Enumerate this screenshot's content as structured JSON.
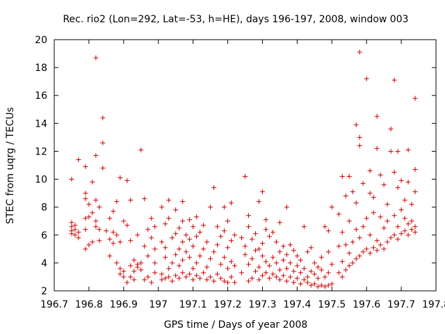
{
  "chart_data": {
    "type": "scatter",
    "title": "Rec. rio2 (Lon=292, Lat=-53, h=HE), days 196-197, 2008, window 003",
    "xlabel": "GPS time / Days of year 2008",
    "ylabel": "STEC from uqrg / TECUs",
    "xlim": [
      196.7,
      197.8
    ],
    "ylim": [
      2,
      20
    ],
    "xticks": [
      "196.7",
      "196.8",
      "196.9",
      "197",
      "197.1",
      "197.2",
      "197.3",
      "197.4",
      "197.5",
      "197.6",
      "197.7",
      "197.8"
    ],
    "yticks": [
      "2",
      "4",
      "6",
      "8",
      "10",
      "12",
      "14",
      "16",
      "18",
      "20"
    ],
    "grid": false,
    "legend": "none",
    "marker": "plus",
    "color": "#cc0000",
    "points": [
      [
        196.75,
        6.3
      ],
      [
        196.75,
        6.1
      ],
      [
        196.75,
        6.6
      ],
      [
        196.75,
        6.9
      ],
      [
        196.75,
        10.0
      ],
      [
        196.76,
        6.0
      ],
      [
        196.76,
        6.4
      ],
      [
        196.76,
        6.7
      ],
      [
        196.77,
        5.8
      ],
      [
        196.77,
        6.2
      ],
      [
        196.77,
        11.4
      ],
      [
        196.79,
        6.4
      ],
      [
        196.79,
        7.2
      ],
      [
        196.79,
        8.6
      ],
      [
        196.79,
        9.0
      ],
      [
        196.79,
        5.0
      ],
      [
        196.79,
        10.9
      ],
      [
        196.8,
        5.3
      ],
      [
        196.8,
        7.3
      ],
      [
        196.8,
        8.2
      ],
      [
        196.81,
        7.6
      ],
      [
        196.81,
        9.8
      ],
      [
        196.81,
        5.5
      ],
      [
        196.82,
        8.5
      ],
      [
        196.82,
        7.0
      ],
      [
        196.82,
        6.6
      ],
      [
        196.82,
        11.7
      ],
      [
        196.82,
        18.7
      ],
      [
        196.83,
        8.0
      ],
      [
        196.83,
        6.4
      ],
      [
        196.83,
        5.6
      ],
      [
        196.84,
        12.6
      ],
      [
        196.84,
        14.4
      ],
      [
        196.84,
        10.8
      ],
      [
        196.85,
        6.3
      ],
      [
        196.86,
        7.2
      ],
      [
        196.86,
        5.7
      ],
      [
        196.86,
        4.5
      ],
      [
        196.87,
        7.7
      ],
      [
        196.87,
        5.4
      ],
      [
        196.87,
        6.2
      ],
      [
        196.88,
        4.0
      ],
      [
        196.88,
        8.4
      ],
      [
        196.88,
        6.0
      ],
      [
        196.89,
        3.6
      ],
      [
        196.89,
        3.2
      ],
      [
        196.89,
        5.5
      ],
      [
        196.89,
        10.1
      ],
      [
        196.9,
        3.0
      ],
      [
        196.9,
        3.4
      ],
      [
        196.9,
        7.0
      ],
      [
        196.91,
        2.6
      ],
      [
        196.91,
        6.7
      ],
      [
        196.91,
        9.9
      ],
      [
        196.92,
        3.8
      ],
      [
        196.92,
        3.0
      ],
      [
        196.92,
        5.6
      ],
      [
        196.92,
        8.5
      ],
      [
        196.93,
        3.4
      ],
      [
        196.93,
        2.8
      ],
      [
        196.93,
        4.2
      ],
      [
        196.94,
        3.7
      ],
      [
        196.94,
        3.9
      ],
      [
        196.94,
        6.0
      ],
      [
        196.95,
        12.1
      ],
      [
        196.95,
        4.0
      ],
      [
        196.95,
        3.5
      ],
      [
        196.96,
        2.8
      ],
      [
        196.96,
        5.2
      ],
      [
        196.96,
        8.6
      ],
      [
        196.97,
        3.0
      ],
      [
        196.97,
        4.5
      ],
      [
        196.97,
        6.4
      ],
      [
        196.98,
        2.6
      ],
      [
        196.98,
        5.8
      ],
      [
        196.98,
        7.2
      ],
      [
        196.99,
        3.3
      ],
      [
        196.99,
        4.0
      ],
      [
        196.99,
        5.0
      ],
      [
        196.99,
        6.6
      ],
      [
        197.01,
        2.8
      ],
      [
        197.01,
        3.2
      ],
      [
        197.01,
        5.5
      ],
      [
        197.01,
        8.0
      ],
      [
        197.02,
        2.9
      ],
      [
        197.02,
        4.4
      ],
      [
        197.02,
        5.1
      ],
      [
        197.02,
        6.8
      ],
      [
        197.03,
        3.0
      ],
      [
        197.03,
        3.6
      ],
      [
        197.03,
        7.2
      ],
      [
        197.03,
        8.5
      ],
      [
        197.04,
        2.7
      ],
      [
        197.04,
        4.0
      ],
      [
        197.04,
        5.8
      ],
      [
        197.05,
        3.1
      ],
      [
        197.05,
        4.6
      ],
      [
        197.05,
        6.1
      ],
      [
        197.05,
        7.8
      ],
      [
        197.06,
        2.9
      ],
      [
        197.06,
        3.8
      ],
      [
        197.06,
        5.0
      ],
      [
        197.06,
        6.5
      ],
      [
        197.07,
        3.3
      ],
      [
        197.07,
        4.2
      ],
      [
        197.07,
        5.5
      ],
      [
        197.07,
        7.0
      ],
      [
        197.07,
        8.4
      ],
      [
        197.08,
        3.0
      ],
      [
        197.08,
        4.8
      ],
      [
        197.08,
        6.0
      ],
      [
        197.09,
        3.2
      ],
      [
        197.09,
        4.4
      ],
      [
        197.09,
        5.7
      ],
      [
        197.09,
        7.1
      ],
      [
        197.1,
        2.8
      ],
      [
        197.1,
        3.6
      ],
      [
        197.1,
        5.2
      ],
      [
        197.1,
        6.6
      ],
      [
        197.11,
        3.1
      ],
      [
        197.11,
        4.0
      ],
      [
        197.11,
        5.9
      ],
      [
        197.11,
        7.3
      ],
      [
        197.12,
        2.9
      ],
      [
        197.12,
        4.5
      ],
      [
        197.12,
        6.2
      ],
      [
        197.13,
        3.3
      ],
      [
        197.13,
        5.0
      ],
      [
        197.13,
        6.7
      ],
      [
        197.14,
        2.8
      ],
      [
        197.14,
        3.7
      ],
      [
        197.14,
        5.5
      ],
      [
        197.15,
        3.0
      ],
      [
        197.15,
        4.3
      ],
      [
        197.15,
        8.0
      ],
      [
        197.16,
        2.7
      ],
      [
        197.16,
        4.8
      ],
      [
        197.16,
        9.4
      ],
      [
        197.17,
        3.2
      ],
      [
        197.17,
        5.3
      ],
      [
        197.17,
        6.6
      ],
      [
        197.18,
        2.9
      ],
      [
        197.18,
        3.9
      ],
      [
        197.18,
        5.9
      ],
      [
        197.19,
        2.7
      ],
      [
        197.19,
        4.4
      ],
      [
        197.19,
        6.3
      ],
      [
        197.19,
        8.0
      ],
      [
        197.2,
        2.6
      ],
      [
        197.2,
        3.6
      ],
      [
        197.2,
        5.1
      ],
      [
        197.2,
        7.0
      ],
      [
        197.21,
        3.0
      ],
      [
        197.21,
        4.1
      ],
      [
        197.21,
        5.6
      ],
      [
        197.21,
        8.3
      ],
      [
        197.22,
        2.6
      ],
      [
        197.22,
        3.8
      ],
      [
        197.22,
        6.0
      ],
      [
        197.24,
        5.8
      ],
      [
        197.24,
        3.3
      ],
      [
        197.25,
        4.6
      ],
      [
        197.25,
        5.2
      ],
      [
        197.25,
        10.2
      ],
      [
        197.26,
        2.7
      ],
      [
        197.26,
        3.9
      ],
      [
        197.26,
        6.6
      ],
      [
        197.26,
        7.4
      ],
      [
        197.27,
        2.9
      ],
      [
        197.27,
        4.3
      ],
      [
        197.27,
        5.7
      ],
      [
        197.28,
        3.4
      ],
      [
        197.28,
        4.9
      ],
      [
        197.28,
        6.1
      ],
      [
        197.29,
        2.8
      ],
      [
        197.29,
        3.7
      ],
      [
        197.29,
        5.0
      ],
      [
        197.29,
        8.4
      ],
      [
        197.3,
        3.1
      ],
      [
        197.3,
        4.5
      ],
      [
        197.3,
        5.4
      ],
      [
        197.3,
        9.1
      ],
      [
        197.31,
        3.3
      ],
      [
        197.31,
        4.1
      ],
      [
        197.31,
        6.4
      ],
      [
        197.31,
        7.1
      ],
      [
        197.32,
        2.9
      ],
      [
        197.32,
        3.8
      ],
      [
        197.32,
        5.9
      ],
      [
        197.33,
        3.2
      ],
      [
        197.33,
        4.4
      ],
      [
        197.33,
        6.2
      ],
      [
        197.34,
        3.0
      ],
      [
        197.34,
        4.0
      ],
      [
        197.34,
        5.5
      ],
      [
        197.35,
        2.8
      ],
      [
        197.35,
        3.5
      ],
      [
        197.35,
        4.8
      ],
      [
        197.35,
        6.9
      ],
      [
        197.36,
        3.1
      ],
      [
        197.36,
        4.2
      ],
      [
        197.36,
        5.2
      ],
      [
        197.37,
        2.7
      ],
      [
        197.37,
        3.6
      ],
      [
        197.37,
        4.6
      ],
      [
        197.37,
        8.0
      ],
      [
        197.38,
        3.0
      ],
      [
        197.38,
        4.0
      ],
      [
        197.38,
        5.3
      ],
      [
        197.39,
        2.6
      ],
      [
        197.39,
        3.4
      ],
      [
        197.39,
        4.9
      ],
      [
        197.4,
        2.9
      ],
      [
        197.4,
        3.8
      ],
      [
        197.4,
        4.5
      ],
      [
        197.41,
        2.5
      ],
      [
        197.41,
        3.3
      ],
      [
        197.41,
        4.2
      ],
      [
        197.42,
        2.8
      ],
      [
        197.42,
        3.6
      ],
      [
        197.42,
        6.6
      ],
      [
        197.43,
        2.6
      ],
      [
        197.43,
        3.0
      ],
      [
        197.43,
        4.8
      ],
      [
        197.44,
        2.4
      ],
      [
        197.44,
        3.4
      ],
      [
        197.44,
        5.1
      ],
      [
        197.45,
        2.5
      ],
      [
        197.45,
        3.2
      ],
      [
        197.45,
        4.0
      ],
      [
        197.46,
        2.3
      ],
      [
        197.46,
        2.9
      ],
      [
        197.46,
        3.7
      ],
      [
        197.47,
        2.4
      ],
      [
        197.47,
        3.5
      ],
      [
        197.47,
        4.4
      ],
      [
        197.48,
        2.3
      ],
      [
        197.48,
        3.0
      ],
      [
        197.48,
        6.6
      ],
      [
        197.49,
        2.4
      ],
      [
        197.49,
        3.3
      ],
      [
        197.49,
        4.8
      ],
      [
        197.49,
        6.3
      ],
      [
        197.5,
        2.5
      ],
      [
        197.5,
        3.9
      ],
      [
        197.5,
        8.0
      ],
      [
        197.52,
        3.3
      ],
      [
        197.52,
        5.2
      ],
      [
        197.52,
        7.5
      ],
      [
        197.53,
        3.0
      ],
      [
        197.53,
        4.1
      ],
      [
        197.53,
        6.2
      ],
      [
        197.53,
        10.2
      ],
      [
        197.54,
        3.5
      ],
      [
        197.54,
        5.3
      ],
      [
        197.54,
        8.8
      ],
      [
        197.55,
        3.8
      ],
      [
        197.55,
        4.7
      ],
      [
        197.55,
        7.0
      ],
      [
        197.55,
        10.2
      ],
      [
        197.56,
        4.0
      ],
      [
        197.56,
        5.5
      ],
      [
        197.56,
        9.1
      ],
      [
        197.57,
        4.3
      ],
      [
        197.57,
        6.4
      ],
      [
        197.57,
        8.3
      ],
      [
        197.57,
        13.9
      ],
      [
        197.58,
        4.5
      ],
      [
        197.58,
        5.8
      ],
      [
        197.58,
        12.4
      ],
      [
        197.58,
        13.0
      ],
      [
        197.58,
        19.1
      ],
      [
        197.59,
        4.8
      ],
      [
        197.59,
        6.6
      ],
      [
        197.59,
        9.7
      ],
      [
        197.6,
        5.0
      ],
      [
        197.6,
        7.2
      ],
      [
        197.6,
        17.2
      ],
      [
        197.61,
        4.7
      ],
      [
        197.61,
        6.0
      ],
      [
        197.61,
        9.0
      ],
      [
        197.61,
        10.6
      ],
      [
        197.62,
        5.1
      ],
      [
        197.62,
        7.6
      ],
      [
        197.62,
        8.7
      ],
      [
        197.63,
        4.9
      ],
      [
        197.63,
        5.6
      ],
      [
        197.63,
        12.2
      ],
      [
        197.63,
        14.5
      ],
      [
        197.64,
        5.3
      ],
      [
        197.64,
        7.3
      ],
      [
        197.64,
        10.3
      ],
      [
        197.65,
        5.0
      ],
      [
        197.65,
        6.5
      ],
      [
        197.65,
        9.6
      ],
      [
        197.66,
        5.5
      ],
      [
        197.66,
        7.0
      ],
      [
        197.66,
        8.2
      ],
      [
        197.67,
        5.8
      ],
      [
        197.67,
        12.0
      ],
      [
        197.67,
        13.6
      ],
      [
        197.68,
        6.0
      ],
      [
        197.68,
        7.4
      ],
      [
        197.68,
        10.5
      ],
      [
        197.68,
        17.1
      ],
      [
        197.69,
        5.7
      ],
      [
        197.69,
        6.6
      ],
      [
        197.69,
        9.4
      ],
      [
        197.69,
        12.0
      ],
      [
        197.7,
        6.1
      ],
      [
        197.7,
        7.8
      ],
      [
        197.7,
        9.9
      ],
      [
        197.71,
        6.3
      ],
      [
        197.71,
        7.2
      ],
      [
        197.71,
        8.5
      ],
      [
        197.72,
        6.0
      ],
      [
        197.72,
        6.8
      ],
      [
        197.72,
        12.1
      ],
      [
        197.72,
        9.8
      ],
      [
        197.73,
        6.4
      ],
      [
        197.73,
        7.0
      ],
      [
        197.73,
        8.2
      ],
      [
        197.74,
        6.2
      ],
      [
        197.74,
        6.6
      ],
      [
        197.74,
        9.1
      ],
      [
        197.74,
        10.7
      ],
      [
        197.74,
        15.8
      ]
    ]
  }
}
